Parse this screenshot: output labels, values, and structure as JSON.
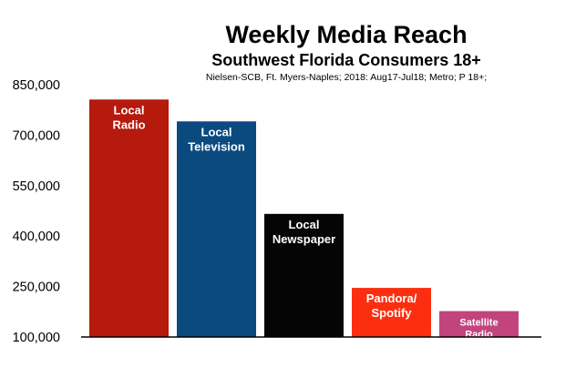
{
  "chart_data": {
    "type": "bar",
    "title": "Weekly Media Reach",
    "subtitle": "Southwest Florida Consumers 18+",
    "source_note": "Nielsen-SCB, Ft. Myers-Naples; 2018: Aug17-Jul18; Metro; P 18+;",
    "categories": [
      [
        "Local",
        "Radio"
      ],
      [
        "Local",
        "Television"
      ],
      [
        "Local",
        "Newspaper"
      ],
      [
        "Pandora/",
        "Spotify"
      ],
      [
        "Satellite",
        "Radio"
      ]
    ],
    "values": [
      806000,
      741000,
      466000,
      246000,
      177000
    ],
    "colors": [
      "#b51a0c",
      "#0b4a7f",
      "#050505",
      "#fb2f10",
      "#c2447d"
    ],
    "ylim": [
      100000,
      850000
    ],
    "yticks": [
      100000,
      250000,
      400000,
      550000,
      700000,
      850000
    ],
    "ytick_labels": [
      "100,000",
      "250,000",
      "400,000",
      "550,000",
      "700,000",
      "850,000"
    ],
    "xlabel": "",
    "ylabel": "",
    "grid": false,
    "legend": "none"
  }
}
